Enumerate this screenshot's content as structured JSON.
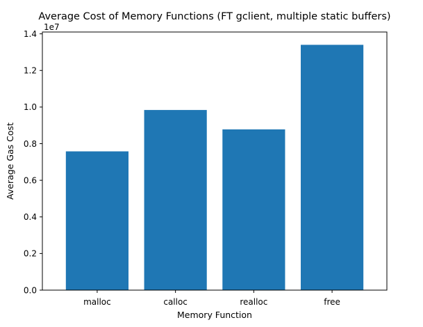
{
  "chart_data": {
    "type": "bar",
    "title": "Average Cost of Memory Functions (FT gclient, multiple static buffers)",
    "xlabel": "Memory Function",
    "ylabel": "Average Gas Cost",
    "y_offset_label": "1e7",
    "y_multiplier": 10000000,
    "categories": [
      "malloc",
      "calloc",
      "realloc",
      "free"
    ],
    "values": [
      7580000,
      9840000,
      8780000,
      13400000
    ],
    "ylim": [
      0,
      14100000
    ],
    "y_ticks": [
      0.0,
      0.2,
      0.4,
      0.6,
      0.8,
      1.0,
      1.2,
      1.4
    ],
    "y_tick_labels": [
      "0.0",
      "0.2",
      "0.4",
      "0.6",
      "0.8",
      "1.0",
      "1.2",
      "1.4"
    ],
    "bar_color": "#1f77b4",
    "grid": false,
    "legend": false
  }
}
